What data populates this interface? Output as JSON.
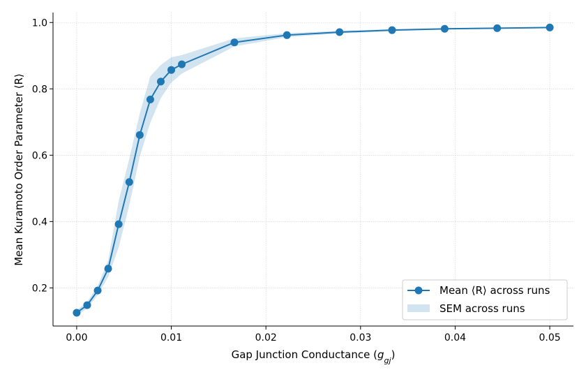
{
  "chart_data": {
    "type": "line",
    "xlabel": "Gap Junction Conductance (g_gj)",
    "xlabel_parts": {
      "prefix": "Gap Junction Conductance (",
      "var": "g",
      "sub": "gj",
      "suffix": ")"
    },
    "ylabel": "Mean Kuramoto Order Parameter ⟨R⟩",
    "xlim": [
      -0.0025,
      0.0525
    ],
    "ylim": [
      0.085,
      1.03
    ],
    "xticks": [
      0.0,
      0.01,
      0.02,
      0.03,
      0.04,
      0.05
    ],
    "xtick_labels": [
      "0.00",
      "0.01",
      "0.02",
      "0.03",
      "0.04",
      "0.05"
    ],
    "yticks": [
      0.2,
      0.4,
      0.6,
      0.8,
      1.0
    ],
    "ytick_labels": [
      "0.2",
      "0.4",
      "0.6",
      "0.8",
      "1.0"
    ],
    "grid": true,
    "legend_position": "bottom-right",
    "colors": {
      "line": "#1f77b4",
      "band": "#1f77b4",
      "grid": "#cccccc"
    },
    "series": [
      {
        "name": "Mean ⟨R⟩ across runs",
        "x": [
          0.0,
          0.00111,
          0.00222,
          0.00333,
          0.00444,
          0.00556,
          0.00667,
          0.00778,
          0.00889,
          0.01,
          0.01111,
          0.01667,
          0.02222,
          0.02778,
          0.03333,
          0.03889,
          0.04444,
          0.05
        ],
        "y": [
          0.125,
          0.148,
          0.192,
          0.258,
          0.392,
          0.519,
          0.661,
          0.768,
          0.822,
          0.857,
          0.874,
          0.94,
          0.962,
          0.971,
          0.977,
          0.981,
          0.983,
          0.985
        ],
        "sem": [
          0.008,
          0.01,
          0.014,
          0.025,
          0.07,
          0.07,
          0.065,
          0.07,
          0.05,
          0.038,
          0.028,
          0.012,
          0.006,
          0.004,
          0.003,
          0.002,
          0.002,
          0.002
        ]
      }
    ],
    "band_label": "SEM across runs"
  }
}
